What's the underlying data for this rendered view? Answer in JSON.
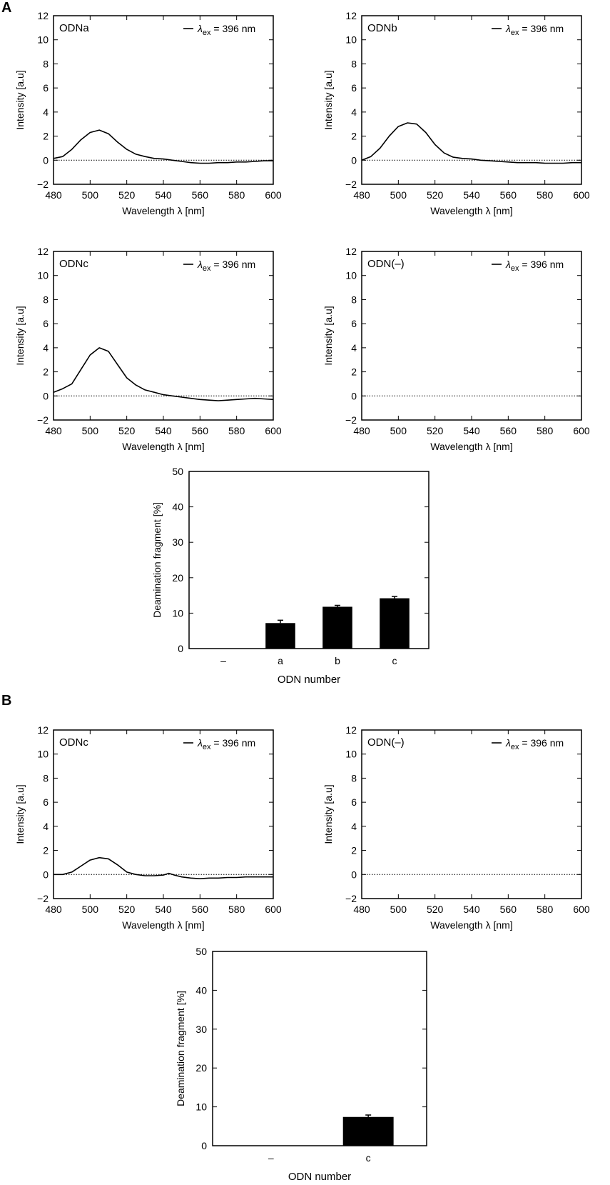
{
  "panels": {
    "a_label": "A",
    "b_label": "B"
  },
  "chart_data": [
    {
      "type": "line",
      "panel": "A",
      "name": "ODNa",
      "title": "ODNa",
      "legend": "λex = 396 nm",
      "legend_location": "top-right",
      "xlabel": "Wavelength λ [nm]",
      "ylabel": "Intensity [a.u]",
      "xlim": [
        480,
        600
      ],
      "ylim": [
        -2,
        12
      ],
      "xticks": [
        480,
        500,
        520,
        540,
        560,
        580,
        600
      ],
      "yticks": [
        -2,
        0,
        2,
        4,
        6,
        8,
        10,
        12
      ],
      "baseline": 0,
      "series": [
        {
          "x": [
            480,
            485,
            490,
            495,
            500,
            505,
            510,
            515,
            520,
            525,
            530,
            535,
            540,
            545,
            550,
            555,
            560,
            565,
            570,
            575,
            580,
            585,
            590,
            595,
            600
          ],
          "y": [
            0.15,
            0.3,
            0.9,
            1.7,
            2.3,
            2.5,
            2.2,
            1.5,
            0.9,
            0.5,
            0.3,
            0.15,
            0.1,
            0.0,
            -0.1,
            -0.2,
            -0.25,
            -0.25,
            -0.2,
            -0.2,
            -0.15,
            -0.15,
            -0.1,
            -0.05,
            -0.05
          ]
        }
      ]
    },
    {
      "type": "line",
      "panel": "A",
      "name": "ODNb",
      "title": "ODNb",
      "legend": "λex = 396 nm",
      "legend_location": "top-right",
      "xlabel": "Wavelength λ [nm]",
      "ylabel": "Intensity [a.u]",
      "xlim": [
        480,
        600
      ],
      "ylim": [
        -2,
        12
      ],
      "xticks": [
        480,
        500,
        520,
        540,
        560,
        580,
        600
      ],
      "yticks": [
        -2,
        0,
        2,
        4,
        6,
        8,
        10,
        12
      ],
      "baseline": 0,
      "series": [
        {
          "x": [
            480,
            485,
            490,
            495,
            500,
            505,
            510,
            515,
            520,
            525,
            530,
            535,
            540,
            545,
            550,
            555,
            560,
            565,
            570,
            575,
            580,
            585,
            590,
            595,
            600
          ],
          "y": [
            0.0,
            0.3,
            1.0,
            2.0,
            2.8,
            3.1,
            3.0,
            2.3,
            1.3,
            0.6,
            0.25,
            0.15,
            0.1,
            0.0,
            -0.05,
            -0.1,
            -0.15,
            -0.2,
            -0.2,
            -0.2,
            -0.25,
            -0.25,
            -0.25,
            -0.2,
            -0.2
          ]
        }
      ]
    },
    {
      "type": "line",
      "panel": "A",
      "name": "ODNc",
      "title": "ODNc",
      "legend": "λex = 396 nm",
      "legend_location": "top-right",
      "xlabel": "Wavelength λ [nm]",
      "ylabel": "Intensity [a.u]",
      "xlim": [
        480,
        600
      ],
      "ylim": [
        -2,
        12
      ],
      "xticks": [
        480,
        500,
        520,
        540,
        560,
        580,
        600
      ],
      "yticks": [
        -2,
        0,
        2,
        4,
        6,
        8,
        10,
        12
      ],
      "baseline": 0,
      "series": [
        {
          "x": [
            480,
            485,
            490,
            495,
            500,
            505,
            510,
            515,
            520,
            525,
            530,
            535,
            540,
            545,
            550,
            555,
            560,
            565,
            570,
            575,
            580,
            585,
            590,
            595,
            600
          ],
          "y": [
            0.3,
            0.6,
            1.0,
            2.2,
            3.4,
            4.0,
            3.7,
            2.6,
            1.5,
            0.9,
            0.5,
            0.3,
            0.1,
            0.0,
            -0.1,
            -0.2,
            -0.3,
            -0.35,
            -0.4,
            -0.35,
            -0.3,
            -0.25,
            -0.2,
            -0.25,
            -0.3
          ]
        }
      ]
    },
    {
      "type": "line",
      "panel": "A",
      "name": "ODN(–)",
      "title": "ODN(–)",
      "legend": "λex = 396 nm",
      "legend_location": "top-right",
      "xlabel": "Wavelength λ [nm]",
      "ylabel": "Intensity [a.u]",
      "xlim": [
        480,
        600
      ],
      "ylim": [
        -2,
        12
      ],
      "xticks": [
        480,
        500,
        520,
        540,
        560,
        580,
        600
      ],
      "yticks": [
        -2,
        0,
        2,
        4,
        6,
        8,
        10,
        12
      ],
      "baseline": 0,
      "series": [
        {
          "x": [],
          "y": []
        }
      ]
    },
    {
      "type": "bar",
      "panel": "A",
      "name": "deamination-A",
      "categories": [
        "–",
        "a",
        "b",
        "c"
      ],
      "values": [
        0,
        7.2,
        11.8,
        14.2
      ],
      "errors": [
        0,
        0.8,
        0.4,
        0.5
      ],
      "xlabel": "ODN number",
      "ylabel": "Deamination fragment [%]",
      "ylim": [
        0,
        50
      ],
      "yticks": [
        0,
        10,
        20,
        30,
        40,
        50
      ]
    },
    {
      "type": "line",
      "panel": "B",
      "name": "ODNc-B",
      "title": "ODNc",
      "legend": "λex = 396 nm",
      "legend_location": "top-right",
      "xlabel": "Wavelength λ [nm]",
      "ylabel": "Intensity [a.u]",
      "xlim": [
        480,
        600
      ],
      "ylim": [
        -2,
        12
      ],
      "xticks": [
        480,
        500,
        520,
        540,
        560,
        580,
        600
      ],
      "yticks": [
        -2,
        0,
        2,
        4,
        6,
        8,
        10,
        12
      ],
      "baseline": 0,
      "series": [
        {
          "x": [
            480,
            485,
            490,
            495,
            500,
            505,
            510,
            515,
            520,
            525,
            530,
            535,
            540,
            543,
            546,
            550,
            555,
            560,
            565,
            570,
            575,
            580,
            585,
            590,
            595,
            600
          ],
          "y": [
            0.0,
            0.0,
            0.2,
            0.7,
            1.2,
            1.4,
            1.3,
            0.8,
            0.2,
            0.0,
            -0.1,
            -0.1,
            -0.05,
            0.1,
            -0.05,
            -0.2,
            -0.3,
            -0.35,
            -0.3,
            -0.3,
            -0.25,
            -0.25,
            -0.2,
            -0.2,
            -0.2,
            -0.2
          ]
        }
      ]
    },
    {
      "type": "line",
      "panel": "B",
      "name": "ODN(–)-B",
      "title": "ODN(–)",
      "legend": "λex = 396 nm",
      "legend_location": "top-right",
      "xlabel": "Wavelength λ [nm]",
      "ylabel": "Intensity [a.u]",
      "xlim": [
        480,
        600
      ],
      "ylim": [
        -2,
        12
      ],
      "xticks": [
        480,
        500,
        520,
        540,
        560,
        580,
        600
      ],
      "yticks": [
        -2,
        0,
        2,
        4,
        6,
        8,
        10,
        12
      ],
      "baseline": 0,
      "series": [
        {
          "x": [],
          "y": []
        }
      ]
    },
    {
      "type": "bar",
      "panel": "B",
      "name": "deamination-B",
      "categories": [
        "–",
        "c"
      ],
      "values": [
        0,
        7.4
      ],
      "errors": [
        0,
        0.5
      ],
      "xlabel": "ODN number",
      "ylabel": "Deamination fragment [%]",
      "ylim": [
        0,
        50
      ],
      "yticks": [
        0,
        10,
        20,
        30,
        40,
        50
      ]
    }
  ]
}
